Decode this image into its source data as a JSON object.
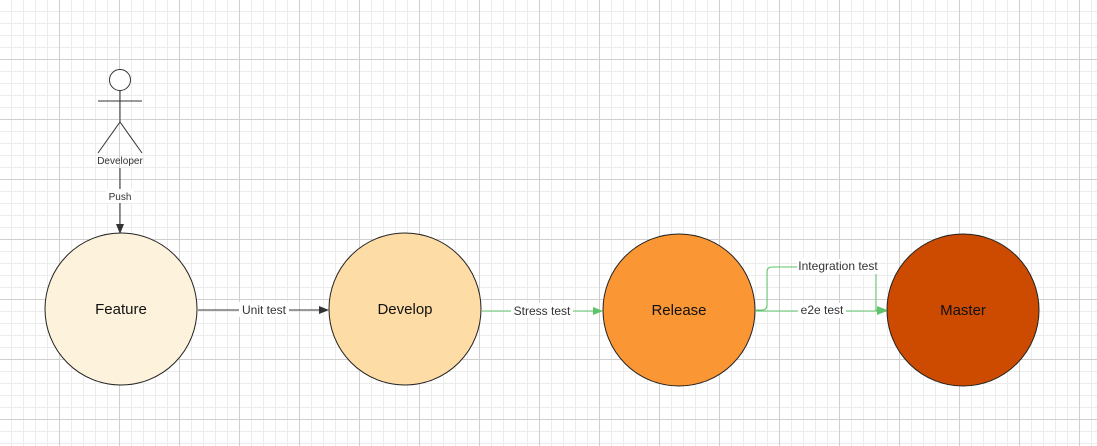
{
  "actor": {
    "label": "Developer"
  },
  "nodes": [
    {
      "id": "feature",
      "label": "Feature",
      "fill": "#fdf3dc"
    },
    {
      "id": "develop",
      "label": "Develop",
      "fill": "#fddca6"
    },
    {
      "id": "release",
      "label": "Release",
      "fill": "#fb9634"
    },
    {
      "id": "master",
      "label": "Master",
      "fill": "#cc4b00"
    }
  ],
  "edges": {
    "push": "Push",
    "unit_test": "Unit test",
    "stress_test": "Stress test",
    "integration_test": "Integration test",
    "e2e_test": "e2e test"
  },
  "colors": {
    "black_connector": "#333333",
    "green_connector": "#5ec46a",
    "node_stroke": "#222222",
    "grid_major": "#cfcfcf",
    "grid_minor": "#ececec"
  }
}
